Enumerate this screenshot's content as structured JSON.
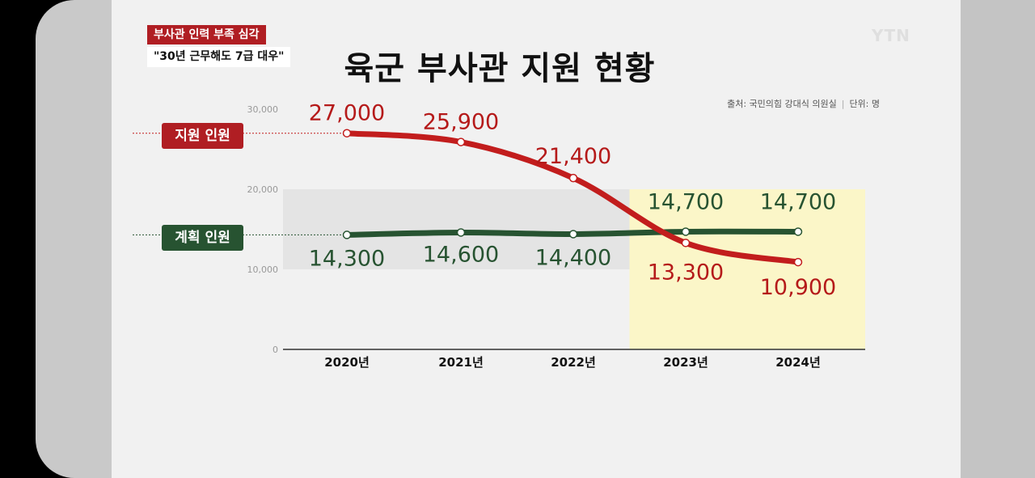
{
  "headline": {
    "tag": "부사관 인력 부족 심각",
    "quote": "\"30년 근무해도 7급 대우\""
  },
  "logo": "YTN",
  "title": "육군 부사관 지원 현황",
  "source": {
    "text": "출처: 국민의힘 강대식 의원실",
    "separator": "|",
    "unit": "단위: 명"
  },
  "chart_data": {
    "type": "line",
    "title": "육군 부사관 지원 현황",
    "categories": [
      "2020년",
      "2021년",
      "2022년",
      "2023년",
      "2024년"
    ],
    "series": [
      {
        "name": "지원 인원",
        "values": [
          27000,
          25900,
          21400,
          13300,
          10900
        ],
        "color": "#c21d1d"
      },
      {
        "name": "계획 인원",
        "values": [
          14300,
          14600,
          14400,
          14700,
          14700
        ],
        "color": "#275331"
      }
    ],
    "data_labels": {
      "지원 인원": [
        "27,000",
        "25,900",
        "21,400",
        "13,300",
        "10,900"
      ],
      "계획 인원": [
        "14,300",
        "14,600",
        "14,400",
        "14,700",
        "14,700"
      ]
    },
    "y_ticks": [
      0,
      10000,
      20000,
      30000
    ],
    "y_tick_labels": [
      "0",
      "10,000",
      "20,000",
      "30,000"
    ],
    "ylim": [
      0,
      30000
    ],
    "highlight_categories": [
      "2023년",
      "2024년"
    ],
    "highlight_color": "#fbf6c8",
    "band_range": [
      10000,
      20000
    ],
    "grid": false
  }
}
